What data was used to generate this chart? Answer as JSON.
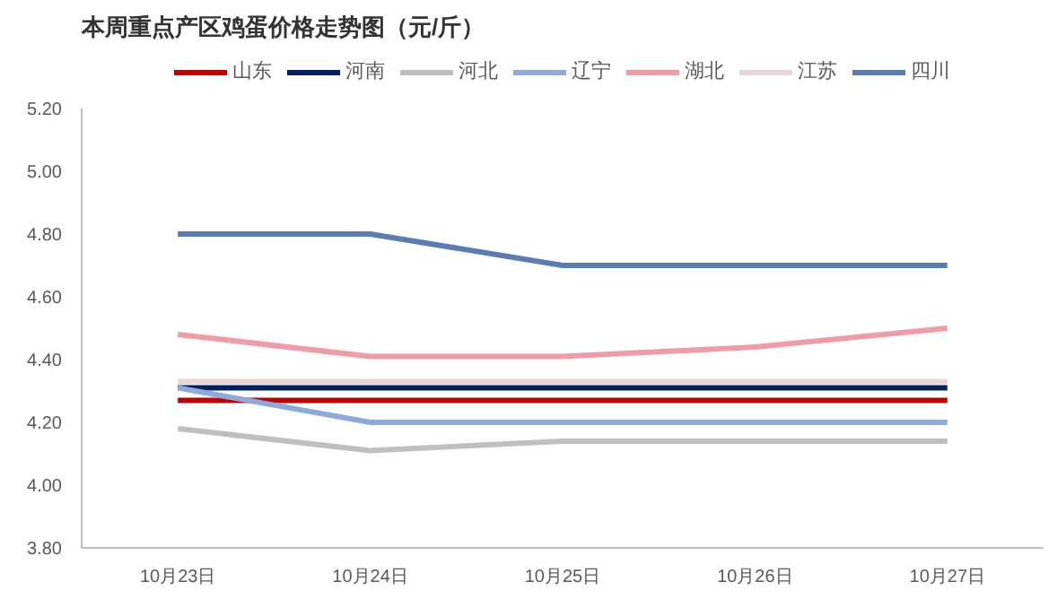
{
  "chart_data": {
    "type": "line",
    "title": "本周重点产区鸡蛋价格走势图（元/斤）",
    "categories": [
      "10月23日",
      "10月24日",
      "10月25日",
      "10月26日",
      "10月27日"
    ],
    "series": [
      {
        "name": "山东",
        "color": "#c00000",
        "values": [
          4.27,
          4.27,
          4.27,
          4.27,
          4.27
        ]
      },
      {
        "name": "河南",
        "color": "#002060",
        "values": [
          4.31,
          4.31,
          4.31,
          4.31,
          4.31
        ]
      },
      {
        "name": "河北",
        "color": "#bfbfbf",
        "values": [
          4.18,
          4.11,
          4.14,
          4.14,
          4.14
        ]
      },
      {
        "name": "辽宁",
        "color": "#8ea9db",
        "values": [
          4.31,
          4.2,
          4.2,
          4.2,
          4.2
        ]
      },
      {
        "name": "湖北",
        "color": "#f09ca6",
        "values": [
          4.48,
          4.41,
          4.41,
          4.44,
          4.5
        ]
      },
      {
        "name": "江苏",
        "color": "#e8d5d8",
        "values": [
          4.33,
          4.33,
          4.33,
          4.33,
          4.33
        ]
      },
      {
        "name": "四川",
        "color": "#5b7bb5",
        "values": [
          4.8,
          4.8,
          4.7,
          4.7,
          4.7
        ]
      }
    ],
    "ylim": [
      3.8,
      5.2
    ],
    "yticks": [
      {
        "value": 3.8,
        "label": "3.80"
      },
      {
        "value": 4.0,
        "label": "4.00"
      },
      {
        "value": 4.2,
        "label": "4.20"
      },
      {
        "value": 4.4,
        "label": "4.40"
      },
      {
        "value": 4.6,
        "label": "4.60"
      },
      {
        "value": 4.8,
        "label": "4.80"
      },
      {
        "value": 5.0,
        "label": "5.00"
      },
      {
        "value": 5.2,
        "label": "5.20"
      }
    ],
    "grid": false,
    "legend": "top",
    "marker": "none",
    "line_style": "solid"
  }
}
